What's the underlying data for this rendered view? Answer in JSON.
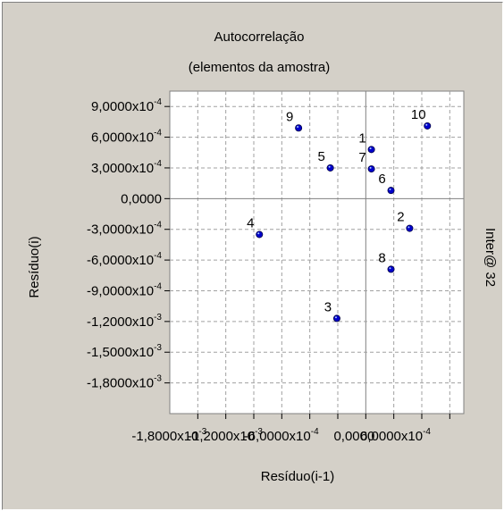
{
  "chart_data": {
    "type": "scatter",
    "title": "Autocorrelação",
    "subtitle": "(elementos da amostra)",
    "xlabel": "Resíduo(i-1)",
    "ylabel": "Resíduo(i)",
    "right_label": "Inter@ 32",
    "xlim": [
      -0.0021,
      0.00105
    ],
    "ylim": [
      -0.0021,
      0.00105
    ],
    "grid": true,
    "y_ticks": [
      {
        "value": 0.0009,
        "mantissa": "9,0000x10",
        "exp": "-4"
      },
      {
        "value": 0.0006,
        "mantissa": "6,0000x10",
        "exp": "-4"
      },
      {
        "value": 0.0003,
        "mantissa": "3,0000x10",
        "exp": "-4"
      },
      {
        "value": 0.0,
        "mantissa": "0,0000",
        "exp": ""
      },
      {
        "value": -0.0003,
        "mantissa": "-3,0000x10",
        "exp": "-4"
      },
      {
        "value": -0.0006,
        "mantissa": "-6,0000x10",
        "exp": "-4"
      },
      {
        "value": -0.0009,
        "mantissa": "-9,0000x10",
        "exp": "-4"
      },
      {
        "value": -0.0012,
        "mantissa": "-1,2000x10",
        "exp": "-3"
      },
      {
        "value": -0.0015,
        "mantissa": "-1,5000x10",
        "exp": "-3"
      },
      {
        "value": -0.0018,
        "mantissa": "-1,8000x10",
        "exp": "-3"
      }
    ],
    "x_tick_values": [
      -0.0018,
      -0.0015,
      -0.0012,
      -0.0009,
      -0.0006,
      -0.0003,
      0.0,
      0.0003,
      0.0006,
      0.0009
    ],
    "x_tick_labels": [
      {
        "value": -0.0018,
        "mantissa": "-1,8000x10",
        "exp": "-3"
      },
      {
        "value": -0.0012,
        "mantissa": "-1,2000x10",
        "exp": "-3"
      },
      {
        "value": -0.0006,
        "mantissa": "-6,0000x10",
        "exp": "-4"
      },
      {
        "value": 0.0,
        "mantissa": "0,0000",
        "exp": ""
      },
      {
        "value": 0.0006,
        "mantissa": "6,0000x10",
        "exp": "-4"
      }
    ],
    "points": [
      {
        "label": "1",
        "x": 6e-05,
        "y": 0.00048
      },
      {
        "label": "2",
        "x": 0.00047,
        "y": -0.00029
      },
      {
        "label": "3",
        "x": -0.00031,
        "y": -0.00117
      },
      {
        "label": "4",
        "x": -0.00114,
        "y": -0.00035
      },
      {
        "label": "5",
        "x": -0.00038,
        "y": 0.0003
      },
      {
        "label": "6",
        "x": 0.00027,
        "y": 8e-05
      },
      {
        "label": "7",
        "x": 6e-05,
        "y": 0.00029
      },
      {
        "label": "8",
        "x": 0.00027,
        "y": -0.00069
      },
      {
        "label": "9",
        "x": -0.00072,
        "y": 0.00069
      },
      {
        "label": "10",
        "x": 0.00066,
        "y": 0.00071
      }
    ],
    "colors": {
      "point": "#0000cc",
      "grid": "#a0a0a0",
      "zero_line": "#808080",
      "plot_bg": "#ffffff",
      "panel_bg": "#d4d0c8"
    }
  }
}
